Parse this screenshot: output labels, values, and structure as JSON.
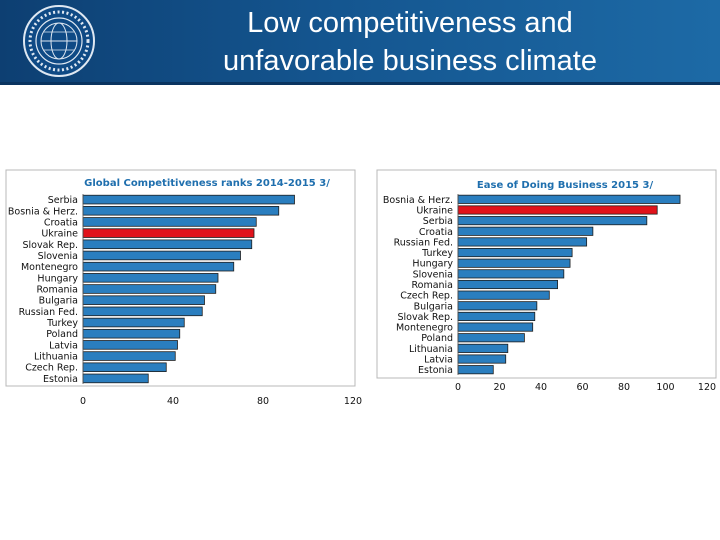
{
  "slide": {
    "title_line1": "Low competitiveness and",
    "title_line2": "unfavorable business climate",
    "logo": {
      "name": "imf-seal-icon",
      "text": "INTERNATIONAL MONETARY FUND"
    }
  },
  "colors": {
    "header": "#14558f",
    "bar": "#2a7ebf",
    "highlight": "#e0131b",
    "chart_title": "#1f6fae"
  },
  "chart_data": [
    {
      "type": "bar",
      "orientation": "horizontal",
      "title": "Global Competitiveness ranks 2014-2015 3/",
      "categories": [
        "Serbia",
        "Bosnia & Herz.",
        "Croatia",
        "Ukraine",
        "Slovak Rep.",
        "Slovenia",
        "Montenegro",
        "Hungary",
        "Romania",
        "Bulgaria",
        "Russian Fed.",
        "Turkey",
        "Poland",
        "Latvia",
        "Lithuania",
        "Czech Rep.",
        "Estonia"
      ],
      "values": [
        94,
        87,
        77,
        76,
        75,
        70,
        67,
        60,
        59,
        54,
        53,
        45,
        43,
        42,
        41,
        37,
        29
      ],
      "highlight": "Ukraine",
      "xlim": [
        0,
        120
      ],
      "xticks": [
        0,
        40,
        80,
        120
      ],
      "grid": false
    },
    {
      "type": "bar",
      "orientation": "horizontal",
      "title": "Ease of Doing Business 2015 3/",
      "categories": [
        "Bosnia & Herz.",
        "Ukraine",
        "Serbia",
        "Croatia",
        "Russian Fed.",
        "Turkey",
        "Hungary",
        "Slovenia",
        "Romania",
        "Czech Rep.",
        "Bulgaria",
        "Slovak Rep.",
        "Montenegro",
        "Poland",
        "Lithuania",
        "Latvia",
        "Estonia"
      ],
      "values": [
        107,
        96,
        91,
        65,
        62,
        55,
        54,
        51,
        48,
        44,
        38,
        37,
        36,
        32,
        24,
        23,
        17
      ],
      "highlight": "Ukraine",
      "xlim": [
        0,
        120
      ],
      "xticks": [
        0,
        20,
        40,
        60,
        80,
        100,
        120
      ],
      "grid": false
    }
  ]
}
